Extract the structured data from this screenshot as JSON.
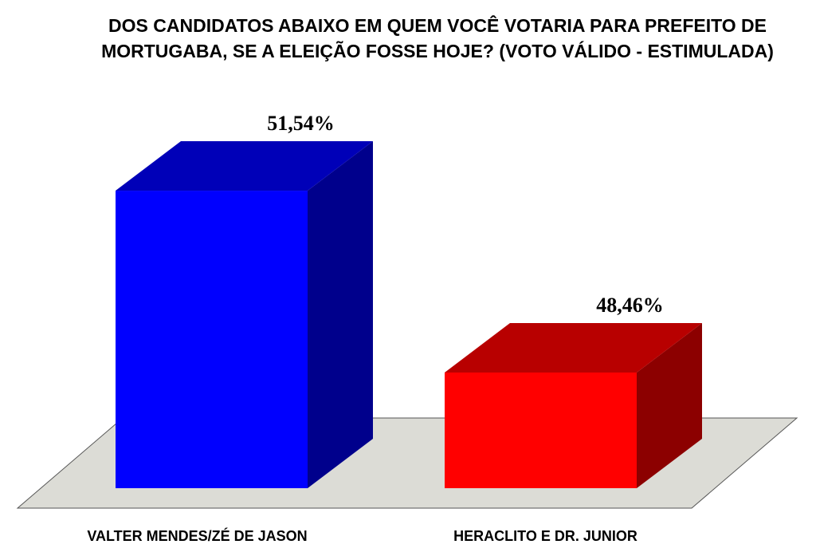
{
  "chart_data": {
    "type": "bar3d",
    "title": [
      "DOS CANDIDATOS ABAIXO EM QUEM VOCÊ VOTARIA PARA PREFEITO  DE",
      "MORTUGABA, SE A ELEIÇÃO FOSSE HOJE? (VOTO VÁLIDO - ESTIMULADA)"
    ],
    "categories": [
      "VALTER MENDES/ZÉ DE JASON",
      "HERACLITO E DR. JUNIOR"
    ],
    "values": [
      51.54,
      48.46
    ],
    "value_labels": [
      "51,54%",
      "48,46%"
    ],
    "colors": [
      "#0000ff",
      "#ff0000"
    ],
    "ylim": [
      46.5,
      52
    ]
  }
}
